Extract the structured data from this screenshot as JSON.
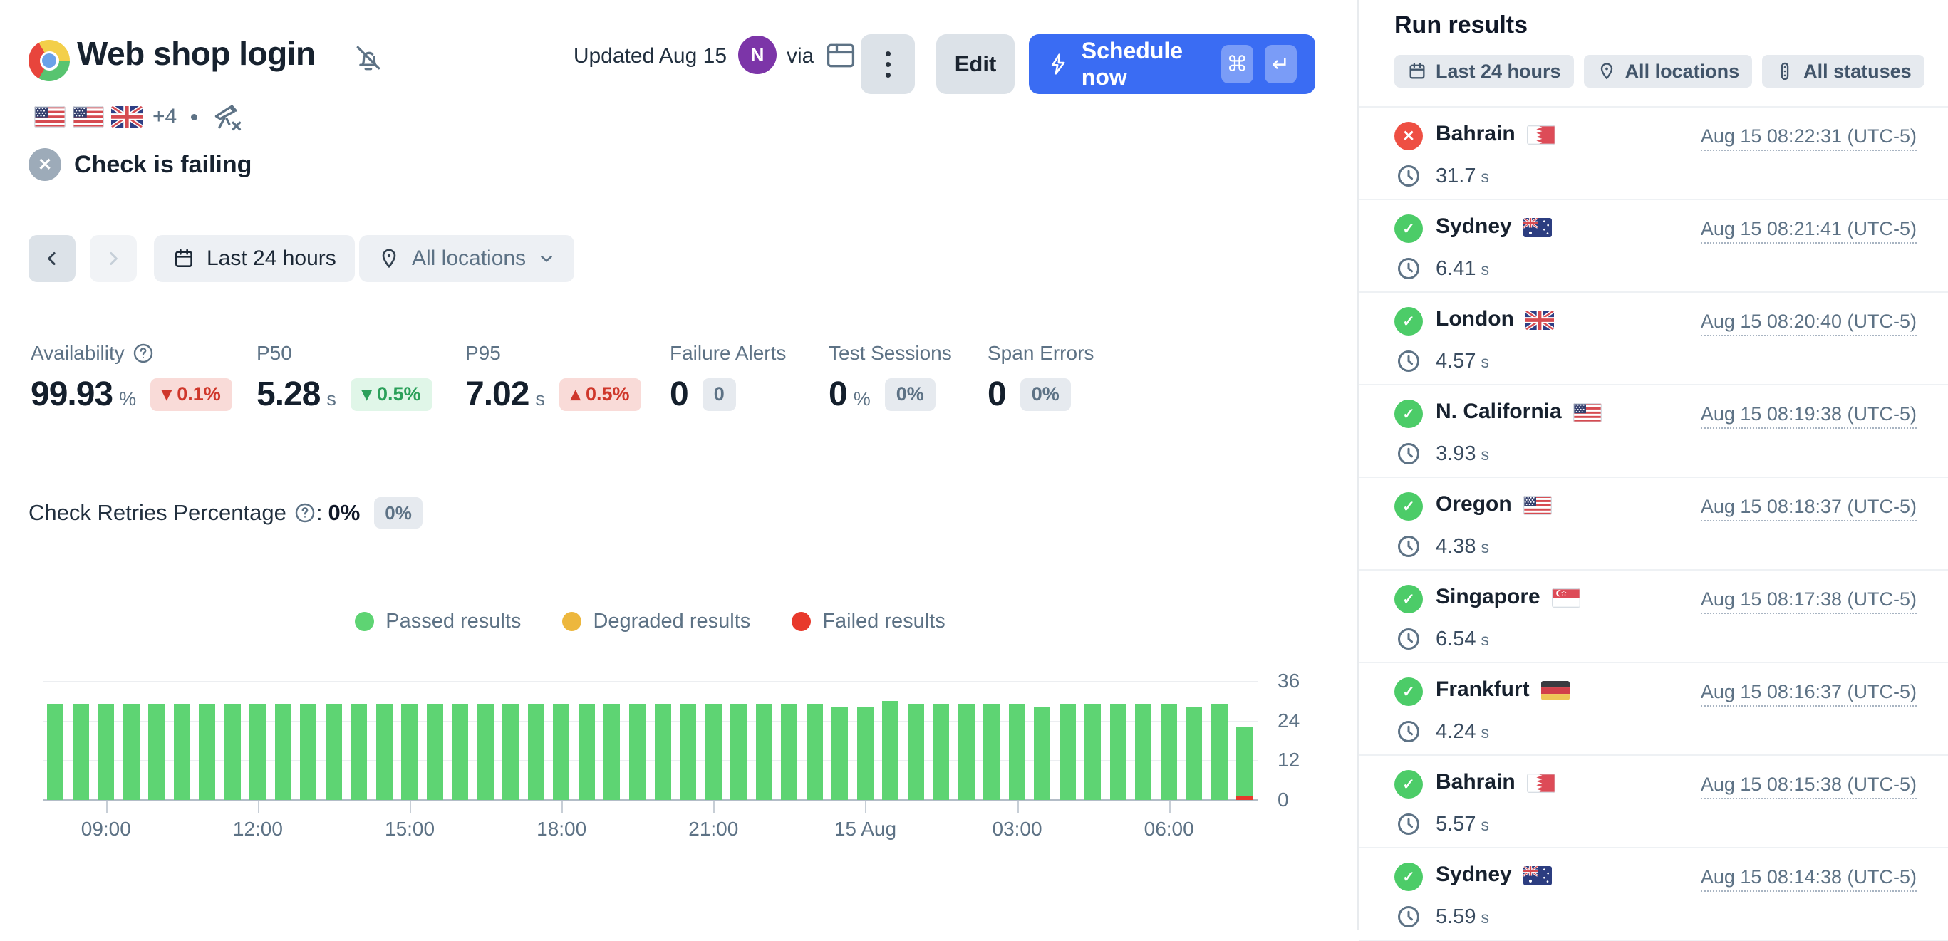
{
  "header": {
    "title": "Web shop login",
    "flags": [
      "us",
      "us",
      "gb"
    ],
    "more_locations": "+4",
    "status_text": "Check is failing",
    "updated_label": "Updated Aug 15",
    "avatar_initial": "N",
    "via_label": "via",
    "edit_label": "Edit",
    "schedule_label": "Schedule now",
    "shortcut_keys": [
      "⌘",
      "↵"
    ]
  },
  "toolbar": {
    "time_range_label": "Last 24 hours",
    "locations_label": "All locations"
  },
  "metrics": [
    {
      "label": "Availability",
      "has_help": true,
      "value": "99.93",
      "unit": "%",
      "delta": "0.1%",
      "delta_dir": "down",
      "delta_color": "red"
    },
    {
      "label": "P50",
      "has_help": false,
      "value": "5.28",
      "unit": "s",
      "delta": "0.5%",
      "delta_dir": "down",
      "delta_color": "green"
    },
    {
      "label": "P95",
      "has_help": false,
      "value": "7.02",
      "unit": "s",
      "delta": "0.5%",
      "delta_dir": "up",
      "delta_color": "red"
    },
    {
      "label": "Failure Alerts",
      "has_help": false,
      "value": "0",
      "unit": "",
      "badge": "0"
    },
    {
      "label": "Test Sessions",
      "has_help": false,
      "value": "0",
      "unit": "%",
      "badge": "0%"
    },
    {
      "label": "Span Errors",
      "has_help": false,
      "value": "0",
      "unit": "",
      "badge": "0%"
    }
  ],
  "retries": {
    "label": "Check Retries Percentage",
    "value": "0%",
    "badge": "0%"
  },
  "chart_data": {
    "type": "bar",
    "stacked": true,
    "title": "",
    "xlabel": "",
    "ylabel": "",
    "ylim": [
      0,
      36
    ],
    "y_ticks": [
      0,
      12,
      24,
      36
    ],
    "x_ticks": [
      "09:00",
      "12:00",
      "15:00",
      "18:00",
      "21:00",
      "15 Aug",
      "03:00",
      "06:00"
    ],
    "grid": true,
    "legend_position": "top-center",
    "legend": [
      {
        "label": "Passed results",
        "color": "#5ed473"
      },
      {
        "label": "Degraded results",
        "color": "#edb73d"
      },
      {
        "label": "Failed results",
        "color": "#e8392b"
      }
    ],
    "series": [
      {
        "name": "Passed results",
        "values": [
          29,
          29,
          29,
          29,
          29,
          29,
          29,
          29,
          29,
          29,
          29,
          29,
          29,
          29,
          29,
          29,
          29,
          29,
          29,
          29,
          29,
          29,
          29,
          29,
          29,
          29,
          29,
          29,
          29,
          29,
          29,
          28,
          28,
          30,
          29,
          29,
          29,
          29,
          29,
          28,
          29,
          29,
          29,
          29,
          29,
          28,
          29,
          21
        ]
      },
      {
        "name": "Failed results",
        "values": [
          0,
          0,
          0,
          0,
          0,
          0,
          0,
          0,
          0,
          0,
          0,
          0,
          0,
          0,
          0,
          0,
          0,
          0,
          0,
          0,
          0,
          0,
          0,
          0,
          0,
          0,
          0,
          0,
          0,
          0,
          0,
          0,
          0,
          0,
          0,
          0,
          0,
          0,
          0,
          0,
          0,
          0,
          0,
          0,
          0,
          0,
          0,
          1
        ]
      }
    ]
  },
  "run_results": {
    "title": "Run results",
    "filters": [
      {
        "label": "Last 24 hours"
      },
      {
        "label": "All locations"
      },
      {
        "label": "All statuses"
      }
    ],
    "duration_unit": "s",
    "runs": [
      {
        "location": "Bahrain",
        "flag": "bh",
        "status": "failed",
        "duration": "31.7",
        "timestamp": "Aug 15 08:22:31 (UTC-5)"
      },
      {
        "location": "Sydney",
        "flag": "au",
        "status": "passed",
        "duration": "6.41",
        "timestamp": "Aug 15 08:21:41 (UTC-5)"
      },
      {
        "location": "London",
        "flag": "gb",
        "status": "passed",
        "duration": "4.57",
        "timestamp": "Aug 15 08:20:40 (UTC-5)"
      },
      {
        "location": "N. California",
        "flag": "us",
        "status": "passed",
        "duration": "3.93",
        "timestamp": "Aug 15 08:19:38 (UTC-5)"
      },
      {
        "location": "Oregon",
        "flag": "us",
        "status": "passed",
        "duration": "4.38",
        "timestamp": "Aug 15 08:18:37 (UTC-5)"
      },
      {
        "location": "Singapore",
        "flag": "sg",
        "status": "passed",
        "duration": "6.54",
        "timestamp": "Aug 15 08:17:38 (UTC-5)"
      },
      {
        "location": "Frankfurt",
        "flag": "de",
        "status": "passed",
        "duration": "4.24",
        "timestamp": "Aug 15 08:16:37 (UTC-5)"
      },
      {
        "location": "Bahrain",
        "flag": "bh",
        "status": "passed",
        "duration": "5.57",
        "timestamp": "Aug 15 08:15:38 (UTC-5)"
      },
      {
        "location": "Sydney",
        "flag": "au",
        "status": "passed",
        "duration": "5.59",
        "timestamp": "Aug 15 08:14:38 (UTC-5)"
      }
    ]
  }
}
